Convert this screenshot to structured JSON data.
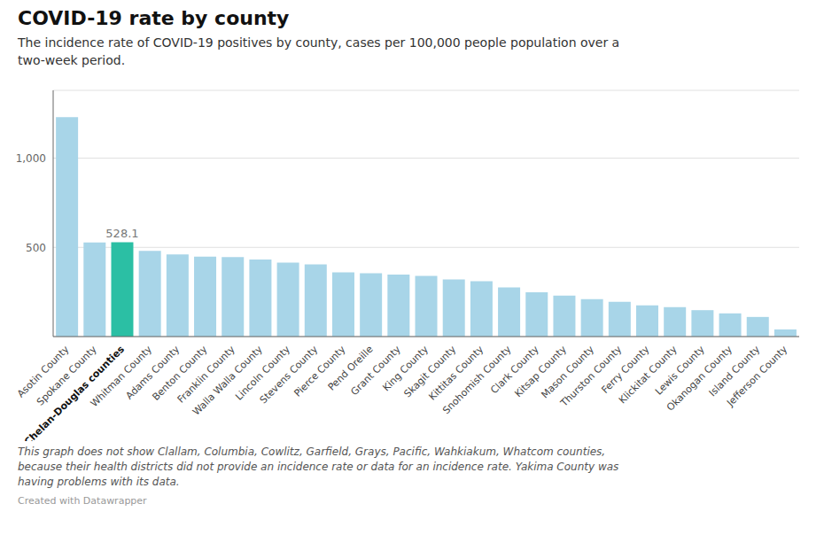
{
  "chart_data": {
    "type": "bar",
    "title": "COVID-19 rate by county",
    "subtitle": "The incidence rate of COVID-19 positives by county, cases per 100,000 people population over a\ntwo-week period.",
    "footnote": "This graph does not show Clallam, Columbia, Cowlitz, Garfield, Grays, Pacific, Wahkiakum, Whatcom counties,\nbecause their health districts did not provide an incidence rate or data for an incidence rate. Yakima County was\nhaving problems with its data.",
    "credit": "Created with Datawrapper",
    "categories": [
      "Asotin County",
      "Spokane County",
      "Chelan-Douglas counties",
      "Whitman County",
      "Adams County",
      "Benton County",
      "Franklin County",
      "Walla Walla County",
      "Lincoln County",
      "Stevens County",
      "Pierce County",
      "Pend Oreille",
      "Grant County",
      "King County",
      "Skagit County",
      "Kittitas County",
      "Snohomish County",
      "Clark County",
      "Kitsap County",
      "Mason County",
      "Thurston County",
      "Ferry County",
      "Klickitat County",
      "Lewis County",
      "Okanogan County",
      "Island County",
      "Jefferson County"
    ],
    "values": [
      1230,
      528,
      528.1,
      480,
      460,
      448,
      445,
      432,
      415,
      405,
      360,
      355,
      348,
      340,
      320,
      310,
      275,
      248,
      230,
      210,
      195,
      175,
      165,
      148,
      130,
      110,
      40
    ],
    "colors": [
      "#a8d5e8",
      "#a8d5e8",
      "#2bbfa4",
      "#a8d5e8",
      "#a8d5e8",
      "#a8d5e8",
      "#a8d5e8",
      "#a8d5e8",
      "#a8d5e8",
      "#a8d5e8",
      "#a8d5e8",
      "#a8d5e8",
      "#a8d5e8",
      "#a8d5e8",
      "#a8d5e8",
      "#a8d5e8",
      "#a8d5e8",
      "#a8d5e8",
      "#a8d5e8",
      "#a8d5e8",
      "#a8d5e8",
      "#a8d5e8",
      "#a8d5e8",
      "#a8d5e8",
      "#a8d5e8",
      "#a8d5e8",
      "#a8d5e8"
    ],
    "annotations": [
      {
        "x": "Chelan-Douglas counties",
        "y": 528.1,
        "text": "528.1"
      }
    ],
    "ylim": [
      0,
      1380
    ],
    "yticks": [
      {
        "value": 0,
        "label": ""
      },
      500,
      {
        "value": 1000,
        "label": "1,000"
      }
    ],
    "grid": true
  }
}
